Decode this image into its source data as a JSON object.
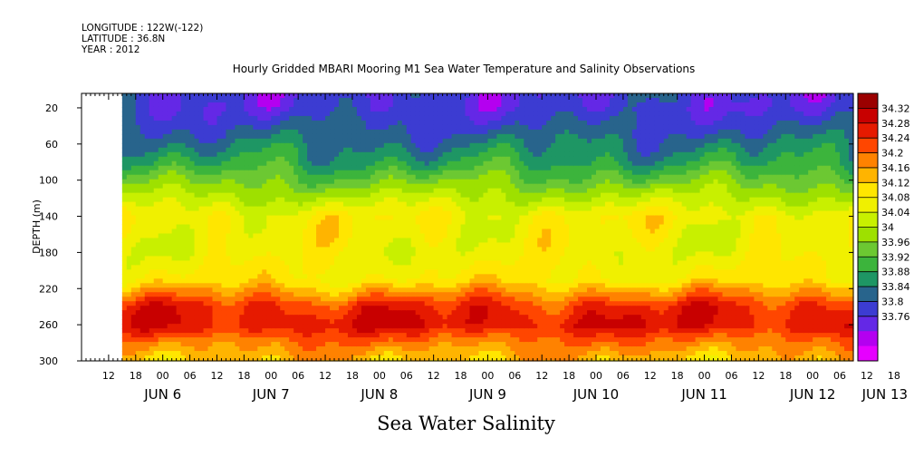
{
  "header": {
    "longitude": "LONGITUDE : 122W(-122)",
    "latitude": "LATITUDE : 36.8N",
    "year": "YEAR : 2012"
  },
  "chart_data": {
    "type": "heatmap",
    "title": "Hourly Gridded MBARI Mooring M1 Sea Water Temperature and Salinity Observations",
    "xlabel": "Sea Water Salinity",
    "ylabel": "DEPTH (m)",
    "y_ticks": [
      20,
      60,
      100,
      140,
      180,
      220,
      260,
      300
    ],
    "ylim": [
      300,
      4
    ],
    "x_hour_ticks": [
      "12",
      "18",
      "00",
      "06",
      "12",
      "18",
      "00",
      "06",
      "12",
      "18",
      "00",
      "06",
      "12",
      "18",
      "00",
      "06",
      "12",
      "18",
      "00",
      "06",
      "12",
      "18",
      "00",
      "06",
      "12",
      "18",
      "00",
      "06",
      "12",
      "18",
      "00",
      "06"
    ],
    "x_date_labels": [
      "JUN  6",
      "JUN  7",
      "JUN  8",
      "JUN  9",
      "JUN 10",
      "JUN 11",
      "JUN 12",
      "JUN 13"
    ],
    "x_range": [
      "2012-06-06T06:00",
      "2012-06-13T09:00"
    ],
    "data_start": "2012-06-06T15:00",
    "colorbar": {
      "levels": [
        "34.32",
        "34.28",
        "34.24",
        "34.2",
        "34.16",
        "34.12",
        "34.08",
        "34.04",
        "34",
        "33.96",
        "33.92",
        "33.88",
        "33.84",
        "33.8",
        "33.76"
      ],
      "colors": [
        "#9b0000",
        "#c80000",
        "#e61a00",
        "#ff4600",
        "#ff8200",
        "#ffb400",
        "#ffe600",
        "#f0f000",
        "#c8f000",
        "#9ee000",
        "#6cc832",
        "#3cb43c",
        "#1e9664",
        "#28648c",
        "#3c3cd2",
        "#6428e6",
        "#b400f0",
        "#e600ff"
      ],
      "min": 33.76,
      "max": 34.34
    },
    "depth_profile": [
      {
        "depth": 5,
        "salinity": 33.86
      },
      {
        "depth": 20,
        "salinity": 33.86
      },
      {
        "depth": 50,
        "salinity": 33.9
      },
      {
        "depth": 80,
        "salinity": 33.95
      },
      {
        "depth": 110,
        "salinity": 34.03
      },
      {
        "depth": 140,
        "salinity": 34.11
      },
      {
        "depth": 180,
        "salinity": 34.1
      },
      {
        "depth": 210,
        "salinity": 34.12
      },
      {
        "depth": 240,
        "salinity": 34.25
      },
      {
        "depth": 260,
        "salinity": 34.27
      },
      {
        "depth": 280,
        "salinity": 34.2
      },
      {
        "depth": 300,
        "salinity": 34.15
      }
    ]
  }
}
